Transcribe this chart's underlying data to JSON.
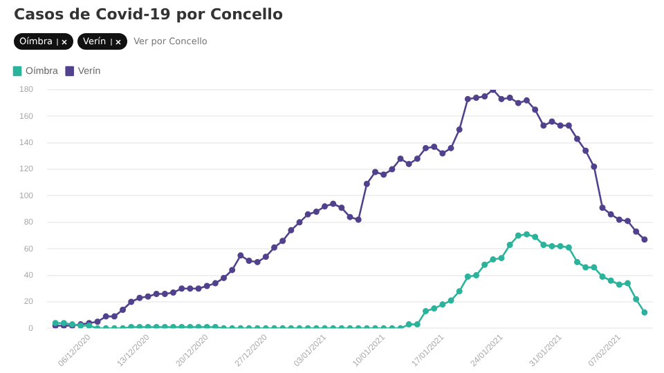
{
  "chart_data": {
    "type": "line",
    "title": "Casos de Covid-19 por Concello",
    "annotations": [
      "Ver por Concello"
    ],
    "x": [
      "2020-12-02",
      "2020-12-03",
      "2020-12-04",
      "2020-12-05",
      "2020-12-06",
      "2020-12-07",
      "2020-12-08",
      "2020-12-09",
      "2020-12-10",
      "2020-12-11",
      "2020-12-12",
      "2020-12-13",
      "2020-12-14",
      "2020-12-15",
      "2020-12-16",
      "2020-12-17",
      "2020-12-18",
      "2020-12-19",
      "2020-12-20",
      "2020-12-21",
      "2020-12-22",
      "2020-12-23",
      "2020-12-24",
      "2020-12-25",
      "2020-12-26",
      "2020-12-27",
      "2020-12-28",
      "2020-12-29",
      "2020-12-30",
      "2020-12-31",
      "2021-01-01",
      "2021-01-02",
      "2021-01-03",
      "2021-01-04",
      "2021-01-05",
      "2021-01-06",
      "2021-01-07",
      "2021-01-08",
      "2021-01-09",
      "2021-01-10",
      "2021-01-11",
      "2021-01-12",
      "2021-01-13",
      "2021-01-14",
      "2021-01-15",
      "2021-01-16",
      "2021-01-17",
      "2021-01-18",
      "2021-01-19",
      "2021-01-20",
      "2021-01-21",
      "2021-01-22",
      "2021-01-23",
      "2021-01-24",
      "2021-01-25",
      "2021-01-26",
      "2021-01-27",
      "2021-01-28",
      "2021-01-29",
      "2021-01-30",
      "2021-01-31",
      "2021-02-01",
      "2021-02-02",
      "2021-02-03",
      "2021-02-04",
      "2021-02-05",
      "2021-02-06",
      "2021-02-07",
      "2021-02-08",
      "2021-02-09",
      "2021-02-10"
    ],
    "series": [
      {
        "name": "Oímbra",
        "color": "#2bb39b",
        "values": [
          4,
          4,
          3,
          2,
          2,
          0,
          0,
          0,
          0,
          1,
          1,
          1,
          1,
          1,
          1,
          1,
          1,
          1,
          1,
          1,
          0,
          0,
          0,
          0,
          0,
          0,
          0,
          0,
          0,
          0,
          0,
          0,
          0,
          0,
          0,
          0,
          0,
          0,
          0,
          0,
          0,
          0,
          3,
          3,
          13,
          15,
          18,
          21,
          28,
          39,
          40,
          48,
          52,
          53,
          63,
          70,
          71,
          69,
          63,
          62,
          62,
          61,
          50,
          46,
          46,
          39,
          36,
          33,
          34,
          22,
          12
        ]
      },
      {
        "name": "Verín",
        "color": "#52418c",
        "values": [
          2,
          2,
          2,
          3,
          4,
          5,
          9,
          9,
          14,
          20,
          23,
          24,
          26,
          26,
          27,
          30,
          30,
          30,
          32,
          34,
          38,
          44,
          55,
          51,
          50,
          54,
          61,
          66,
          74,
          80,
          86,
          88,
          92,
          94,
          91,
          84,
          82,
          109,
          118,
          116,
          120,
          128,
          124,
          128,
          136,
          137,
          132,
          136,
          150,
          173,
          174,
          175,
          180,
          173,
          174,
          170,
          172,
          165,
          153,
          156,
          153,
          153,
          143,
          134,
          122,
          91,
          86,
          82,
          81,
          73,
          67
        ]
      }
    ],
    "xlim": [
      "2020-12-01",
      "2021-02-11"
    ],
    "xticks": [
      {
        "value": "2020-12-06",
        "label": "06/12/2020"
      },
      {
        "value": "2020-12-13",
        "label": "13/12/2020"
      },
      {
        "value": "2020-12-20",
        "label": "20/12/2020"
      },
      {
        "value": "2020-12-27",
        "label": "27/12/2020"
      },
      {
        "value": "2021-01-03",
        "label": "03/01/2021"
      },
      {
        "value": "2021-01-10",
        "label": "10/01/2021"
      },
      {
        "value": "2021-01-17",
        "label": "17/01/2021"
      },
      {
        "value": "2021-01-24",
        "label": "24/01/2021"
      },
      {
        "value": "2021-01-31",
        "label": "31/01/2021"
      },
      {
        "value": "2021-02-07",
        "label": "07/02/2021"
      }
    ],
    "ylim": [
      0,
      180
    ],
    "yticks": [
      0,
      20,
      40,
      60,
      80,
      100,
      120,
      140,
      160,
      180
    ],
    "grid": "y",
    "legend": "top left",
    "marker": "circle",
    "line_style": "solid"
  }
}
